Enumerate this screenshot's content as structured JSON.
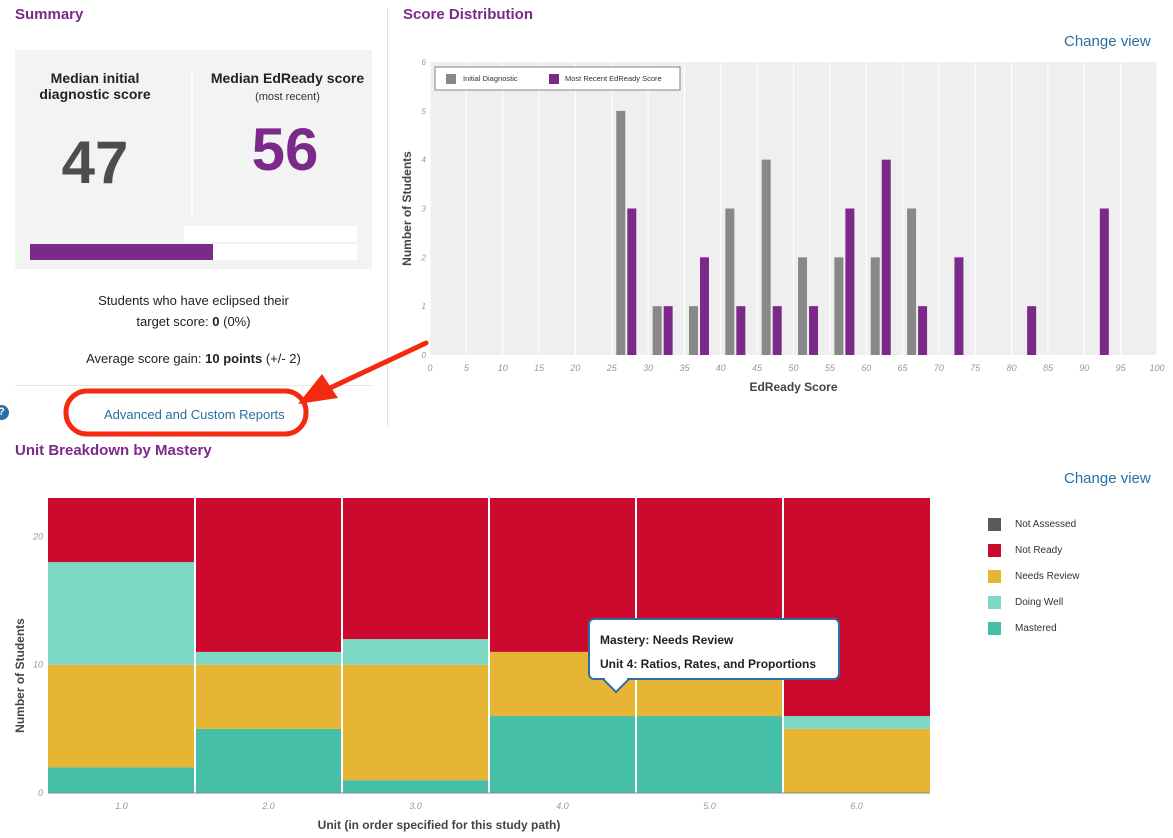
{
  "summary": {
    "title": "Summary",
    "initial_label_line1": "Median initial",
    "initial_label_line2": "diagnostic score",
    "initial_value": "47",
    "edready_label": "Median EdReady score",
    "edready_sub": "(most recent)",
    "edready_value": "56",
    "initial_fraction": 0.47,
    "edready_fraction": 0.56,
    "eclipsed_line1": "Students who have eclipsed their",
    "eclipsed_line2_prefix": "target score: ",
    "eclipsed_count": "0",
    "eclipsed_pct": " (0%)",
    "gain_prefix": "Average score gain: ",
    "gain_value": "10 points",
    "gain_suffix": " (+/- 2)",
    "advanced_link": "Advanced and Custom Reports",
    "help_icon": "?"
  },
  "score_distribution": {
    "title": "Score Distribution",
    "change_view": "Change view"
  },
  "unit_breakdown": {
    "title": "Unit Breakdown by Mastery",
    "change_view": "Change view",
    "tooltip_line1": "Mastery: Needs Review",
    "tooltip_line2": "Unit 4: Ratios, Rates, and Proportions"
  },
  "colors": {
    "purple": "#7c2a8a",
    "gray": "#888888",
    "not_assessed": "#5a5a5a",
    "not_ready": "#cc0a2d",
    "needs_review": "#e6b533",
    "doing_well": "#7dd8c6",
    "mastered": "#45bfa8",
    "annotation_red": "#f42a10"
  },
  "chart_data": [
    {
      "type": "bar",
      "title": "",
      "xlabel": "EdReady Score",
      "ylabel": "Number of Students",
      "xlim": [
        0,
        100
      ],
      "ylim": [
        0,
        6
      ],
      "x_ticks": [
        "0",
        "5",
        "10",
        "15",
        "20",
        "25",
        "30",
        "35",
        "40",
        "45",
        "50",
        "55",
        "60",
        "65",
        "70",
        "75",
        "80",
        "85",
        "90",
        "95",
        "100"
      ],
      "y_ticks": [
        "0",
        "1",
        "2",
        "3",
        "4",
        "5",
        "6"
      ],
      "legend_position": "top-left",
      "series": [
        {
          "name": "Initial Diagnostic",
          "color": "#888888",
          "points": [
            [
              27,
              5
            ],
            [
              32,
              1
            ],
            [
              37,
              1
            ],
            [
              42,
              3
            ],
            [
              47,
              4
            ],
            [
              52,
              2
            ],
            [
              57,
              2
            ],
            [
              62,
              2
            ],
            [
              67,
              3
            ]
          ]
        },
        {
          "name": "Most Recent EdReady Score",
          "color": "#7c2a8a",
          "points": [
            [
              27,
              3
            ],
            [
              32,
              1
            ],
            [
              37,
              2
            ],
            [
              42,
              1
            ],
            [
              47,
              1
            ],
            [
              52,
              1
            ],
            [
              57,
              3
            ],
            [
              62,
              4
            ],
            [
              67,
              1
            ],
            [
              72,
              2
            ],
            [
              82,
              1
            ],
            [
              92,
              3
            ]
          ]
        }
      ]
    },
    {
      "type": "bar",
      "stacked": true,
      "title": "",
      "xlabel": "Unit (in order specified for this study path)",
      "ylabel": "Number of Students",
      "ylim": [
        0,
        23
      ],
      "y_ticks": [
        "0",
        "10",
        "20"
      ],
      "categories": [
        "1.0",
        "2.0",
        "3.0",
        "4.0",
        "5.0",
        "6.0"
      ],
      "legend_position": "right",
      "series": [
        {
          "name": "Mastered",
          "color": "#45bfa8",
          "values": [
            2,
            5,
            1,
            6,
            6,
            0
          ]
        },
        {
          "name": "Needs Review",
          "color": "#e6b533",
          "values": [
            8,
            5,
            9,
            5,
            5,
            5
          ]
        },
        {
          "name": "Doing Well",
          "color": "#7dd8c6",
          "values": [
            8,
            1,
            2,
            0,
            0,
            1
          ]
        },
        {
          "name": "Not Ready",
          "color": "#cc0a2d",
          "values": [
            5,
            12,
            11,
            12,
            12,
            17
          ]
        },
        {
          "name": "Not Assessed",
          "color": "#5a5a5a",
          "values": [
            0,
            0,
            0,
            0,
            0,
            0
          ]
        }
      ],
      "legend_order": [
        "Not Assessed",
        "Not Ready",
        "Needs Review",
        "Doing Well",
        "Mastered"
      ]
    }
  ]
}
